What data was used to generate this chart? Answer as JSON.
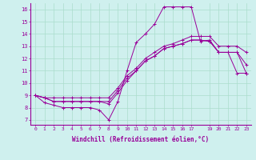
{
  "xlabel": "Windchill (Refroidissement éolien,°C)",
  "bg_color": "#cff0ee",
  "line_color": "#990099",
  "grid_color": "#aaddcc",
  "xlim": [
    -0.5,
    23.5
  ],
  "ylim": [
    6.6,
    16.5
  ],
  "xticks": [
    0,
    1,
    2,
    3,
    4,
    5,
    6,
    7,
    8,
    9,
    10,
    11,
    12,
    13,
    14,
    15,
    16,
    17,
    19,
    20,
    21,
    22,
    23
  ],
  "yticks": [
    7,
    8,
    9,
    10,
    11,
    12,
    13,
    14,
    15,
    16
  ],
  "x_hours": [
    0,
    1,
    2,
    3,
    4,
    5,
    6,
    7,
    8,
    9,
    10,
    11,
    12,
    13,
    14,
    15,
    16,
    17,
    18,
    19,
    20,
    21,
    22,
    23
  ],
  "s1": [
    9.0,
    8.4,
    8.2,
    8.0,
    8.0,
    8.0,
    8.0,
    7.8,
    7.0,
    8.5,
    11.0,
    13.3,
    14.0,
    14.8,
    16.2,
    16.2,
    16.2,
    16.2,
    13.4,
    13.5,
    12.5,
    12.5,
    10.8,
    10.8
  ],
  "s2": [
    9.0,
    8.8,
    8.5,
    8.5,
    8.5,
    8.5,
    8.5,
    8.5,
    8.3,
    9.2,
    10.2,
    11.0,
    11.8,
    12.2,
    12.8,
    13.0,
    13.2,
    13.5,
    13.5,
    13.4,
    12.5,
    12.5,
    12.5,
    10.8
  ],
  "s3": [
    9.0,
    8.8,
    8.5,
    8.5,
    8.5,
    8.5,
    8.5,
    8.5,
    8.5,
    9.4,
    10.4,
    11.0,
    11.8,
    12.2,
    12.8,
    13.0,
    13.2,
    13.5,
    13.5,
    13.4,
    12.5,
    12.5,
    12.5,
    11.5
  ],
  "s4": [
    9.0,
    8.8,
    8.8,
    8.8,
    8.8,
    8.8,
    8.8,
    8.8,
    8.8,
    9.6,
    10.6,
    11.2,
    12.0,
    12.5,
    13.0,
    13.2,
    13.5,
    13.8,
    13.8,
    13.8,
    13.0,
    13.0,
    13.0,
    12.5
  ]
}
